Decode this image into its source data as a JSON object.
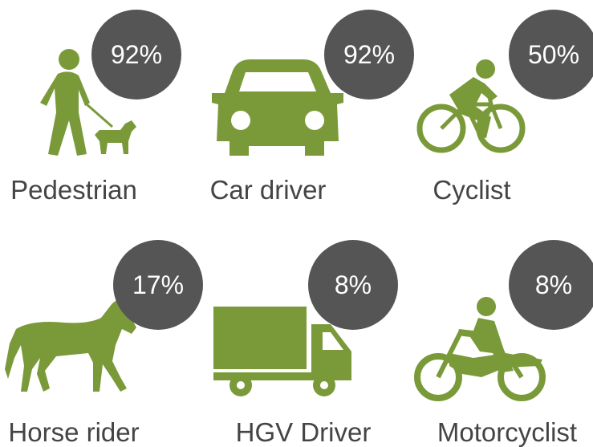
{
  "items": [
    {
      "label": "Pedestrian",
      "value": "92%"
    },
    {
      "label": "Car driver",
      "value": "92%"
    },
    {
      "label": "Cyclist",
      "value": "50%"
    },
    {
      "label": "Horse rider",
      "value": "17%"
    },
    {
      "label": "HGV Driver",
      "value": "8%"
    },
    {
      "label": "Motorcyclist",
      "value": "8%"
    }
  ]
}
